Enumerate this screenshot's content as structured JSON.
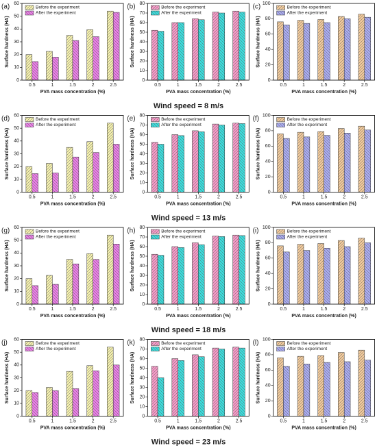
{
  "captions": [
    "Wind speed = 8 m/s",
    "Wind speed = 13 m/s",
    "Wind speed = 18 m/s",
    "Wind speed = 23 m/s"
  ],
  "chart_data": [
    {
      "type": "bar",
      "label": "(a)",
      "x_label": "PVA mass concentration (%)",
      "y_label": "Surface hardness (HA)",
      "categories": [
        "0.5",
        "1",
        "1.5",
        "2",
        "2.5"
      ],
      "ylim": [
        0,
        60
      ],
      "yticks": [
        0,
        10,
        20,
        30,
        40,
        50,
        60
      ],
      "series": [
        {
          "name": "Before the experiment",
          "color": "#f3efae",
          "values": [
            20,
            22.5,
            35,
            39.5,
            54
          ]
        },
        {
          "name": "After the experiment",
          "color": "#e97fe6",
          "values": [
            14.5,
            18,
            31,
            34,
            53
          ]
        }
      ]
    },
    {
      "type": "bar",
      "label": "(b)",
      "x_label": "PVA mass concentration (%)",
      "y_label": "Surface hardness (HA)",
      "categories": [
        "0.5",
        "1",
        "1.5",
        "2",
        "2.5"
      ],
      "ylim": [
        0,
        80
      ],
      "yticks": [
        0,
        10,
        20,
        30,
        40,
        50,
        60,
        70,
        80
      ],
      "series": [
        {
          "name": "Before the experiment",
          "color": "#f49ac6",
          "values": [
            52,
            60,
            64,
            71,
            72
          ]
        },
        {
          "name": "After the experiment",
          "color": "#3ddcdc",
          "values": [
            51,
            60,
            63,
            70,
            71
          ]
        }
      ]
    },
    {
      "type": "bar",
      "label": "(c)",
      "x_label": "PVA mass concentration (%)",
      "y_label": "Surface hardness (HA)",
      "categories": [
        "0.5",
        "1",
        "1.5",
        "2",
        "2.5"
      ],
      "ylim": [
        0,
        100
      ],
      "yticks": [
        0,
        20,
        40,
        60,
        80,
        100
      ],
      "series": [
        {
          "name": "Before the experiment",
          "color": "#f0c99b",
          "values": [
            76,
            78,
            79,
            83,
            86
          ]
        },
        {
          "name": "After the experiment",
          "color": "#a9abf0",
          "values": [
            72,
            74,
            75,
            80,
            82
          ]
        }
      ]
    },
    {
      "type": "bar",
      "label": "(d)",
      "x_label": "PVA mass concentration (%)",
      "y_label": "Surface hardness (HA)",
      "categories": [
        "0.5",
        "1",
        "1.5",
        "2",
        "2.5"
      ],
      "ylim": [
        0,
        60
      ],
      "yticks": [
        0,
        10,
        20,
        30,
        40,
        50,
        60
      ],
      "series": [
        {
          "name": "Before the experiment",
          "color": "#f3efae",
          "values": [
            20,
            22.5,
            35,
            39.5,
            54
          ]
        },
        {
          "name": "After the experiment",
          "color": "#e97fe6",
          "values": [
            14.5,
            15,
            27.5,
            31,
            37.5
          ]
        }
      ]
    },
    {
      "type": "bar",
      "label": "(e)",
      "x_label": "PVA mass concentration (%)",
      "y_label": "Surface hardness (HA)",
      "categories": [
        "0.5",
        "1",
        "1.5",
        "2",
        "2.5"
      ],
      "ylim": [
        0,
        80
      ],
      "yticks": [
        0,
        10,
        20,
        30,
        40,
        50,
        60,
        70,
        80
      ],
      "series": [
        {
          "name": "Before the experiment",
          "color": "#f49ac6",
          "values": [
            52,
            60,
            64,
            71,
            72
          ]
        },
        {
          "name": "After the experiment",
          "color": "#3ddcdc",
          "values": [
            50,
            59,
            63,
            70,
            71.5
          ]
        }
      ]
    },
    {
      "type": "bar",
      "label": "(f)",
      "x_label": "PVA mass concentration (%)",
      "y_label": "Surface hardness (HA)",
      "categories": [
        "0.5",
        "1",
        "1.5",
        "2",
        "2.5"
      ],
      "ylim": [
        0,
        100
      ],
      "yticks": [
        0,
        20,
        40,
        60,
        80,
        100
      ],
      "series": [
        {
          "name": "Before the experiment",
          "color": "#f0c99b",
          "values": [
            76,
            78,
            79,
            83,
            86
          ]
        },
        {
          "name": "After the experiment",
          "color": "#a9abf0",
          "values": [
            70,
            72,
            74,
            77,
            81
          ]
        }
      ]
    },
    {
      "type": "bar",
      "label": "(g)",
      "x_label": "PVA mass concentration (%)",
      "y_label": "Surface hardness (HA)",
      "categories": [
        "0.5",
        "1",
        "1.5",
        "2",
        "2.5"
      ],
      "ylim": [
        0,
        60
      ],
      "yticks": [
        0,
        10,
        20,
        30,
        40,
        50,
        60
      ],
      "series": [
        {
          "name": "Before the experiment",
          "color": "#f3efae",
          "values": [
            20,
            22.5,
            35,
            39.5,
            54
          ]
        },
        {
          "name": "After the experiment",
          "color": "#e97fe6",
          "values": [
            14.5,
            15.5,
            31.5,
            35,
            47
          ]
        }
      ]
    },
    {
      "type": "bar",
      "label": "(h)",
      "x_label": "PVA mass concentration (%)",
      "y_label": "Surface hardness (HA)",
      "categories": [
        "0.5",
        "1",
        "1.5",
        "2",
        "2.5"
      ],
      "ylim": [
        0,
        80
      ],
      "yticks": [
        0,
        10,
        20,
        30,
        40,
        50,
        60,
        70,
        80
      ],
      "series": [
        {
          "name": "Before the experiment",
          "color": "#f49ac6",
          "values": [
            52,
            60,
            64,
            71,
            72
          ]
        },
        {
          "name": "After the experiment",
          "color": "#3ddcdc",
          "values": [
            51,
            59,
            62,
            70.5,
            71.5
          ]
        }
      ]
    },
    {
      "type": "bar",
      "label": "(i)",
      "x_label": "PVA mass concentration (%)",
      "y_label": "Surface hardness (HA)",
      "categories": [
        "0.5",
        "1",
        "1.5",
        "2",
        "2.5"
      ],
      "ylim": [
        0,
        100
      ],
      "yticks": [
        0,
        20,
        40,
        60,
        80,
        100
      ],
      "series": [
        {
          "name": "Before the experiment",
          "color": "#f0c99b",
          "values": [
            76,
            78,
            79,
            83,
            86
          ]
        },
        {
          "name": "After the experiment",
          "color": "#a9abf0",
          "values": [
            68,
            70,
            73,
            75,
            80
          ]
        }
      ]
    },
    {
      "type": "bar",
      "label": "(j)",
      "x_label": "PVA mass concentration (%)",
      "y_label": "Surface hardness (HA)",
      "categories": [
        "0.5",
        "1",
        "1.5",
        "2",
        "2.5"
      ],
      "ylim": [
        0,
        60
      ],
      "yticks": [
        0,
        10,
        20,
        30,
        40,
        50,
        60
      ],
      "series": [
        {
          "name": "Before the experiment",
          "color": "#f3efae",
          "values": [
            20,
            22.5,
            35,
            39.5,
            54
          ]
        },
        {
          "name": "After the experiment",
          "color": "#e97fe6",
          "values": [
            18.5,
            20,
            21.5,
            35.5,
            40
          ]
        }
      ]
    },
    {
      "type": "bar",
      "label": "(k)",
      "x_label": "PVA mass concentration (%)",
      "y_label": "Surface hardness (HA)",
      "categories": [
        "0.5",
        "1",
        "1.5",
        "2",
        "2.5"
      ],
      "ylim": [
        0,
        80
      ],
      "yticks": [
        0,
        10,
        20,
        30,
        40,
        50,
        60,
        70,
        80
      ],
      "series": [
        {
          "name": "Before the experiment",
          "color": "#f49ac6",
          "values": [
            52,
            60,
            64,
            71,
            72
          ]
        },
        {
          "name": "After the experiment",
          "color": "#3ddcdc",
          "values": [
            40,
            58,
            62,
            70,
            71
          ]
        }
      ]
    },
    {
      "type": "bar",
      "label": "(l)",
      "x_label": "PVA mass concentration (%)",
      "y_label": "Surface hardness (HA)",
      "categories": [
        "0.5",
        "1",
        "1.5",
        "2",
        "2.5"
      ],
      "ylim": [
        0,
        100
      ],
      "yticks": [
        0,
        20,
        40,
        60,
        80,
        100
      ],
      "series": [
        {
          "name": "Before the experiment",
          "color": "#f0c99b",
          "values": [
            76,
            78,
            79,
            83,
            86
          ]
        },
        {
          "name": "After the experiment",
          "color": "#a9abf0",
          "values": [
            65,
            68,
            70,
            71,
            73
          ]
        }
      ]
    }
  ]
}
